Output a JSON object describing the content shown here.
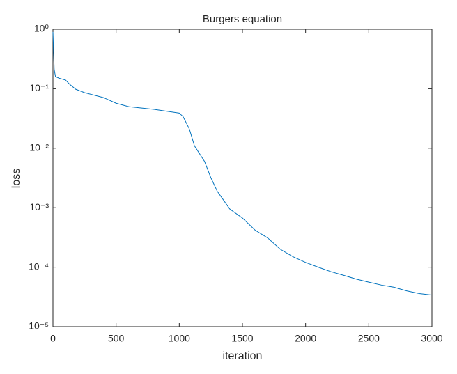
{
  "chart_data": {
    "type": "line",
    "title": "Burgers equation",
    "x_label": "iteration",
    "y_label": "loss",
    "x": [
      0,
      10,
      20,
      50,
      100,
      130,
      180,
      250,
      400,
      500,
      600,
      800,
      1000,
      1030,
      1080,
      1120,
      1200,
      1250,
      1300,
      1400,
      1500,
      1600,
      1700,
      1800,
      1900,
      2000,
      2100,
      2200,
      2300,
      2400,
      2500,
      2600,
      2700,
      2800,
      2900,
      3000
    ],
    "values": [
      0.9,
      0.21,
      0.16,
      0.15,
      0.14,
      0.12,
      0.098,
      0.086,
      0.071,
      0.057,
      0.05,
      0.045,
      0.039,
      0.034,
      0.021,
      0.011,
      0.006,
      0.0032,
      0.0019,
      0.00095,
      0.00067,
      0.00042,
      0.00031,
      0.0002,
      0.00015,
      0.00012,
      0.0001,
      8.4e-05,
      7.3e-05,
      6.3e-05,
      5.6e-05,
      5e-05,
      4.6e-05,
      4e-05,
      3.6e-05,
      3.4e-05
    ],
    "color": "#0072bd",
    "xlim": [
      0,
      3000
    ],
    "xticks": [
      0,
      500,
      1000,
      1500,
      2000,
      2500,
      3000
    ],
    "ylim": [
      1e-05,
      1
    ],
    "log_y": true,
    "yticks": [
      {
        "value": 1e-05,
        "label": "10⁻⁵"
      },
      {
        "value": 0.0001,
        "label": "10⁻⁴"
      },
      {
        "value": 0.001,
        "label": "10⁻³"
      },
      {
        "value": 0.01,
        "label": "10⁻²"
      },
      {
        "value": 0.1,
        "label": "10⁻¹"
      },
      {
        "value": 1,
        "label": "10⁰"
      }
    ]
  }
}
